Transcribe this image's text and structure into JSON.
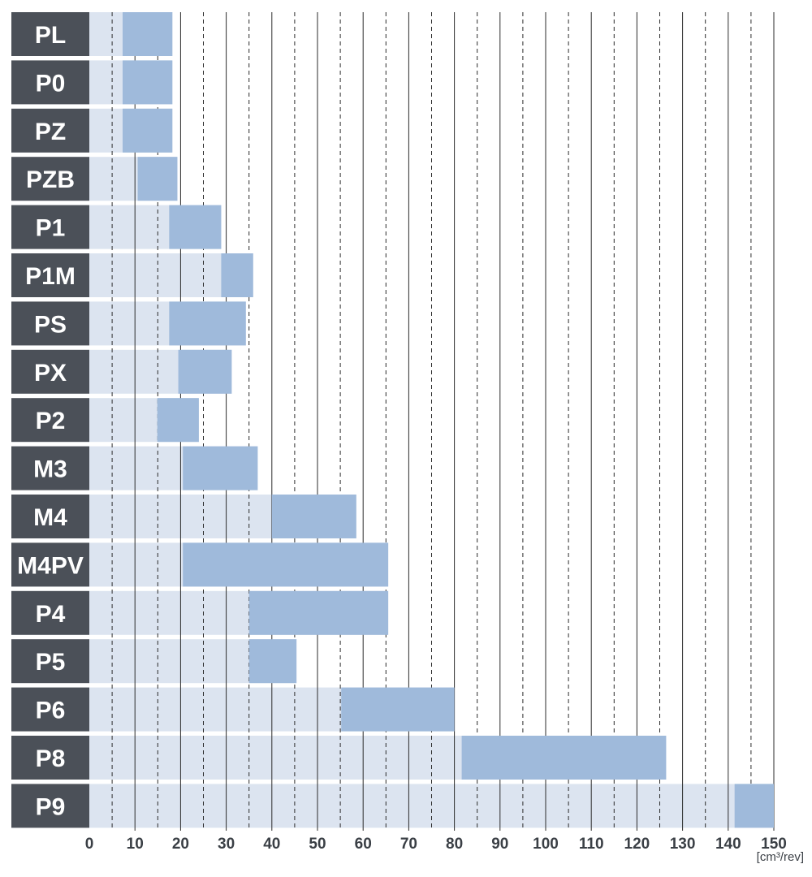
{
  "chart_data": {
    "type": "bar",
    "orientation": "horizontal-range",
    "unit_label": "[cm³/rev]",
    "xlim": [
      0,
      150
    ],
    "x_ticks": [
      0,
      10,
      20,
      30,
      40,
      50,
      60,
      70,
      80,
      90,
      100,
      110,
      120,
      130,
      140,
      150
    ],
    "grid": "solid lines every 10, dashed lines at intermediate 5 steps",
    "colors": {
      "label_bg": "#4b5058",
      "track": "#dce4f0",
      "range": "#9fbadb"
    },
    "categories": [
      "PL",
      "P0",
      "PZ",
      "PZB",
      "P1",
      "P1M",
      "PS",
      "PX",
      "P2",
      "M3",
      "M4",
      "M4PV",
      "P4",
      "P5",
      "P6",
      "P8",
      "P9"
    ],
    "series": [
      {
        "ranges": [
          [
            7.3,
            18.2
          ],
          [
            7.3,
            18.2
          ],
          [
            7.3,
            18.2
          ],
          [
            10.6,
            19.3
          ],
          [
            17.5,
            28.9
          ],
          [
            28.9,
            35.9
          ],
          [
            17.5,
            34.3
          ],
          [
            19.5,
            31.2
          ],
          [
            14.9,
            24.0
          ],
          [
            20.5,
            36.9
          ],
          [
            40.0,
            58.5
          ],
          [
            20.5,
            65.5
          ],
          [
            35.0,
            65.5
          ],
          [
            35.0,
            45.4
          ],
          [
            55.2,
            80.0
          ],
          [
            81.6,
            126.4
          ],
          [
            141.4,
            150.0
          ]
        ],
        "track_end": [
          18.2,
          18.2,
          18.2,
          19.3,
          28.9,
          35.9,
          34.3,
          31.2,
          24.0,
          36.9,
          58.5,
          65.5,
          65.5,
          45.4,
          80.0,
          126.4,
          150.0
        ]
      }
    ]
  }
}
